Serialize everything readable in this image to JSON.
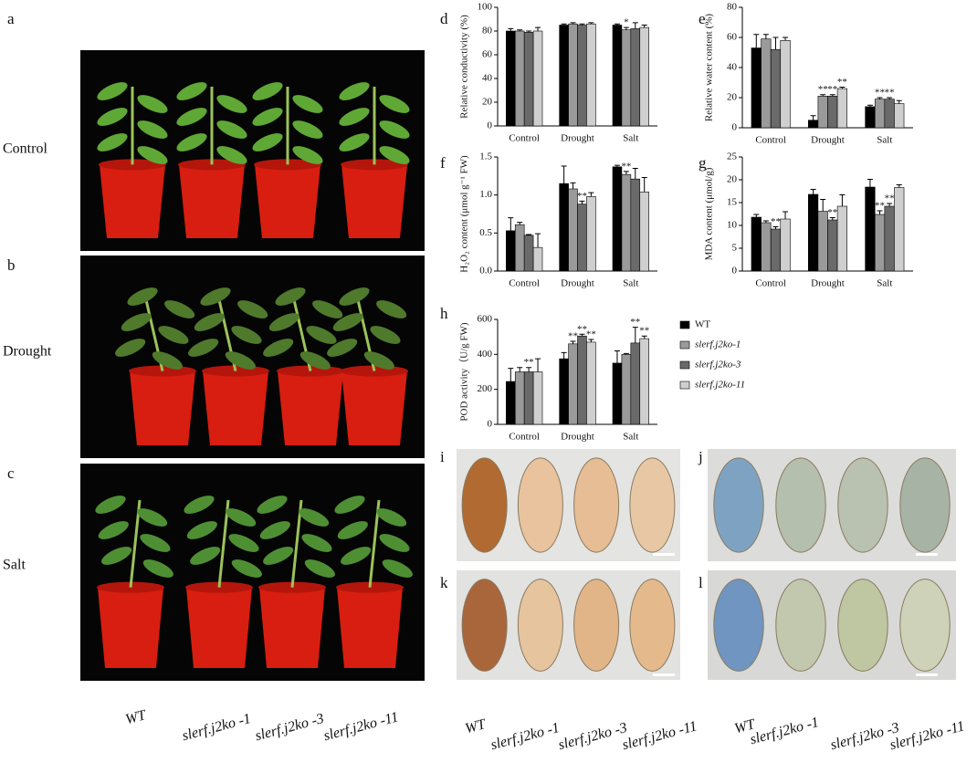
{
  "panel_letters": [
    "a",
    "b",
    "c",
    "d",
    "e",
    "f",
    "g",
    "h",
    "i",
    "j",
    "k",
    "l"
  ],
  "row_labels": [
    "Control",
    "Drought",
    "Salt"
  ],
  "genotypes": [
    "WT",
    "slerf.j2ko -1",
    "slerf.j2ko -3",
    "slerf.j2ko -11"
  ],
  "chart_data": [
    {
      "type": "bar",
      "y_label": "Relative conductivity (%)",
      "categories": [
        "Control",
        "Drought",
        "Salt"
      ],
      "ylim": [
        0,
        100
      ],
      "yticks": [
        0,
        20,
        40,
        60,
        80,
        100
      ],
      "series": [
        {
          "name": "WT",
          "color": "#000000",
          "values": [
            80,
            85,
            85
          ],
          "errors": [
            2,
            1,
            1
          ],
          "significance": [
            null,
            null,
            null
          ]
        },
        {
          "name": "slerf.j2ko-1",
          "color": "#9a9a9a",
          "values": [
            80,
            86,
            81
          ],
          "errors": [
            1,
            1,
            2
          ],
          "significance": [
            null,
            null,
            "*"
          ]
        },
        {
          "name": "slerf.j2ko-3",
          "color": "#6a6a6a",
          "values": [
            79,
            85,
            82
          ],
          "errors": [
            1,
            1,
            5
          ],
          "significance": [
            null,
            null,
            null
          ]
        },
        {
          "name": "slerf.j2ko-11",
          "color": "#cfcfcf",
          "values": [
            80,
            86,
            83
          ],
          "errors": [
            3,
            1,
            2
          ],
          "significance": [
            null,
            null,
            null
          ]
        }
      ]
    },
    {
      "type": "bar",
      "y_label": "Relative water content (%)",
      "categories": [
        "Control",
        "Drought",
        "Salt"
      ],
      "ylim": [
        0,
        80
      ],
      "yticks": [
        0,
        20,
        40,
        60,
        80
      ],
      "series": [
        {
          "name": "WT",
          "color": "#000000",
          "values": [
            53,
            5,
            14
          ],
          "errors": [
            9,
            3,
            1
          ],
          "significance": [
            null,
            null,
            null
          ]
        },
        {
          "name": "slerf.j2ko-1",
          "color": "#9a9a9a",
          "values": [
            59,
            21,
            19
          ],
          "errors": [
            3,
            1,
            1
          ],
          "significance": [
            null,
            "**",
            "**"
          ]
        },
        {
          "name": "slerf.j2ko-3",
          "color": "#6a6a6a",
          "values": [
            52,
            21,
            19
          ],
          "errors": [
            8,
            1,
            1
          ],
          "significance": [
            null,
            "**",
            "**"
          ]
        },
        {
          "name": "slerf.j2ko-11",
          "color": "#cfcfcf",
          "values": [
            58,
            26,
            16
          ],
          "errors": [
            2,
            1,
            2
          ],
          "significance": [
            null,
            "**",
            null
          ]
        }
      ]
    },
    {
      "type": "bar",
      "y_label": "H₂O₂ content (μmol g⁻¹ FW)",
      "categories": [
        "Control",
        "Drought",
        "Salt"
      ],
      "ylim": [
        0,
        1.5
      ],
      "yticks": [
        {
          "value": 0,
          "label": "0.0"
        },
        0.5,
        {
          "value": 1,
          "label": "1.0"
        },
        1.5
      ],
      "series": [
        {
          "name": "WT",
          "color": "#000000",
          "values": [
            0.53,
            1.15,
            1.37
          ],
          "errors": [
            0.17,
            0.23,
            0.02
          ],
          "significance": [
            null,
            null,
            null
          ]
        },
        {
          "name": "slerf.j2ko-1",
          "color": "#9a9a9a",
          "values": [
            0.61,
            1.08,
            1.27
          ],
          "errors": [
            0.03,
            0.08,
            0.04
          ],
          "significance": [
            null,
            null,
            "**"
          ]
        },
        {
          "name": "slerf.j2ko-3",
          "color": "#6a6a6a",
          "values": [
            0.47,
            0.88,
            1.21
          ],
          "errors": [
            0.01,
            0.04,
            0.14
          ],
          "significance": [
            null,
            "**",
            null
          ]
        },
        {
          "name": "slerf.j2ko-11",
          "color": "#cfcfcf",
          "values": [
            0.31,
            0.98,
            1.04
          ],
          "errors": [
            0.18,
            0.05,
            0.19
          ],
          "significance": [
            null,
            null,
            null
          ]
        }
      ]
    },
    {
      "type": "bar",
      "y_label": "MDA content (μmol/g)",
      "categories": [
        "Control",
        "Drought",
        "Salt"
      ],
      "ylim": [
        0,
        25
      ],
      "yticks": [
        0,
        5,
        10,
        15,
        20,
        25
      ],
      "series": [
        {
          "name": "WT",
          "color": "#000000",
          "values": [
            11.8,
            16.8,
            18.4
          ],
          "errors": [
            0.6,
            1.1,
            1.7
          ],
          "significance": [
            null,
            null,
            null
          ]
        },
        {
          "name": "slerf.j2ko-1",
          "color": "#9a9a9a",
          "values": [
            10.6,
            13.1,
            12.4
          ],
          "errors": [
            0.4,
            2.6,
            0.8
          ],
          "significance": [
            null,
            null,
            "**"
          ]
        },
        {
          "name": "slerf.j2ko-3",
          "color": "#6a6a6a",
          "values": [
            9.2,
            11.2,
            14.2
          ],
          "errors": [
            0.5,
            0.5,
            0.6
          ],
          "significance": [
            "**",
            "**",
            "**"
          ]
        },
        {
          "name": "slerf.j2ko-11",
          "color": "#cfcfcf",
          "values": [
            11.4,
            14.2,
            18.3
          ],
          "errors": [
            1.6,
            2.5,
            0.6
          ],
          "significance": [
            null,
            null,
            null
          ]
        }
      ]
    },
    {
      "type": "bar",
      "y_label": "POD activity（U/g FW)",
      "categories": [
        "Control",
        "Drought",
        "Salt"
      ],
      "ylim": [
        0,
        600
      ],
      "yticks": [
        0,
        200,
        400,
        600
      ],
      "legend": "right",
      "series": [
        {
          "name": "WT",
          "color": "#000000",
          "values": [
            245,
            375,
            350
          ],
          "errors": [
            75,
            35,
            70
          ],
          "significance": [
            null,
            null,
            null
          ]
        },
        {
          "name": "slerf.j2ko-1",
          "color": "#9a9a9a",
          "values": [
            300,
            460,
            400
          ],
          "errors": [
            25,
            15,
            5
          ],
          "significance": [
            null,
            "**",
            null
          ]
        },
        {
          "name": "slerf.j2ko-3",
          "color": "#6a6a6a",
          "values": [
            300,
            505,
            465
          ],
          "errors": [
            25,
            10,
            90
          ],
          "significance": [
            "**",
            "**",
            "**"
          ]
        },
        {
          "name": "slerf.j2ko-11",
          "color": "#cfcfcf",
          "values": [
            300,
            470,
            490
          ],
          "errors": [
            75,
            15,
            15
          ],
          "significance": [
            null,
            "**",
            "**"
          ]
        }
      ]
    }
  ]
}
